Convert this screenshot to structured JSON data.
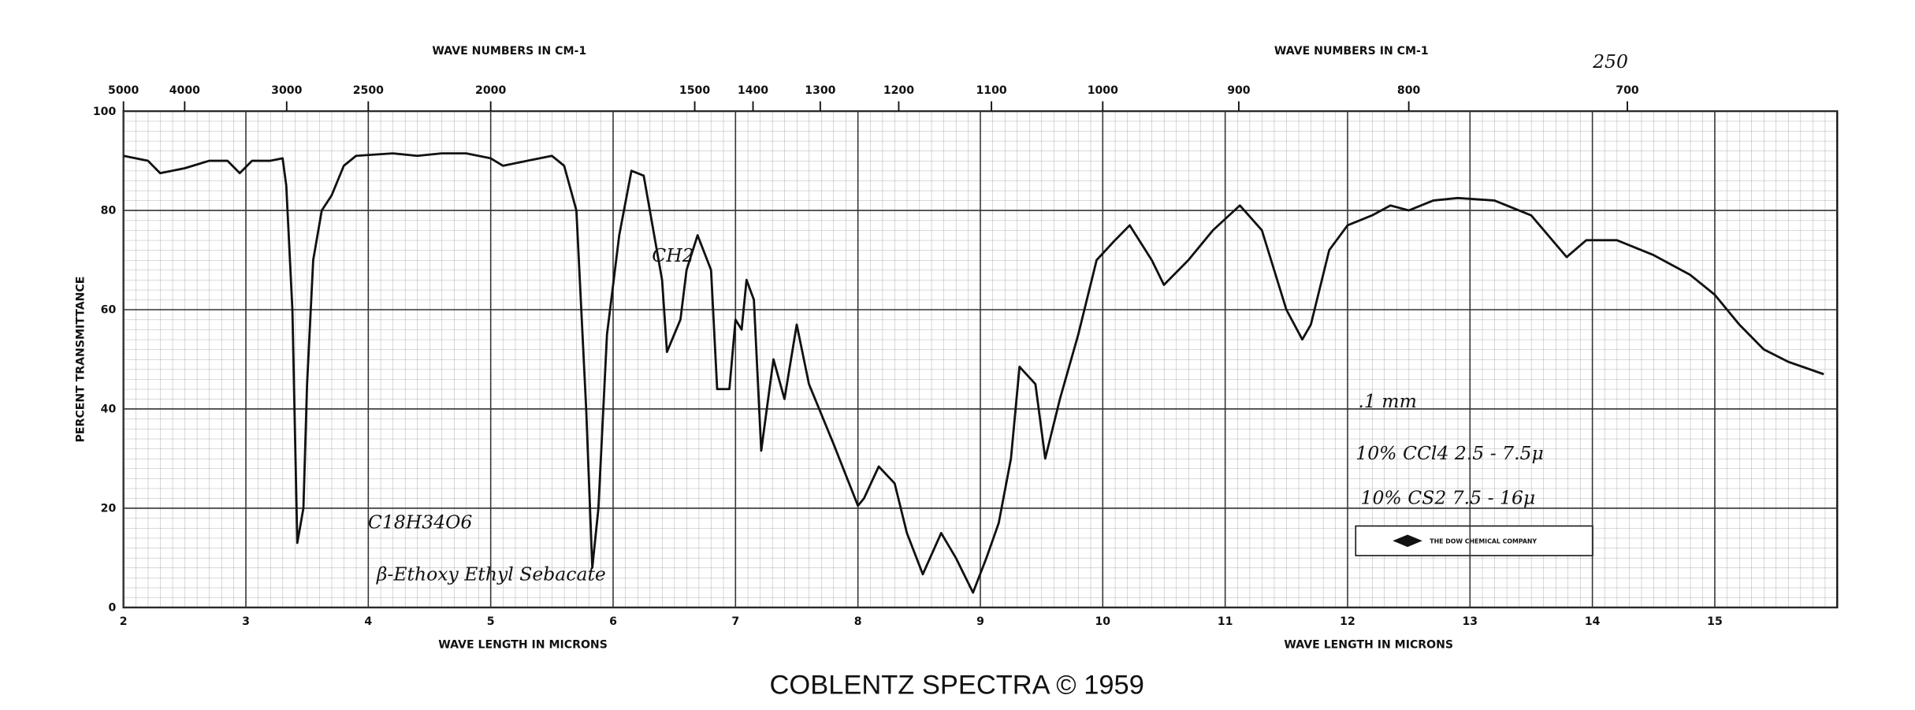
{
  "chart_data": {
    "type": "line",
    "header_number": "250",
    "x2_label": "WAVE NUMBERS IN CM-1",
    "xlabel": "WAVE LENGTH IN MICRONS",
    "ylabel": "PERCENT TRANSMITTANCE",
    "footer": "COBLENTZ SPECTRA © 1959",
    "company": "THE DOW CHEMICAL COMPANY",
    "annotations": [
      ".1 mm",
      "10% CCl4   2.5 - 7.5μ",
      "10% CS2   7.5 - 16μ",
      "β-Ethoxy Ethyl Sebacate",
      "C18H34O6",
      "CH2"
    ],
    "color": "#111111",
    "xlim": [
      2,
      16
    ],
    "xticks": [
      2,
      3,
      4,
      5,
      6,
      7,
      8,
      9,
      10,
      11,
      12,
      13,
      14,
      15
    ],
    "x2lim": [
      5000,
      625
    ],
    "x2ticks": [
      5000,
      4000,
      3000,
      2500,
      2000,
      1500,
      1400,
      1300,
      1200,
      1100,
      1000,
      900,
      800,
      700
    ],
    "ylim": [
      0,
      100
    ],
    "yticks": [
      0,
      20,
      40,
      60,
      80,
      100
    ],
    "grid": true,
    "x": [
      2.0,
      2.2,
      2.3,
      2.5,
      2.7,
      2.85,
      2.95,
      3.05,
      3.2,
      3.3,
      3.33,
      3.38,
      3.42,
      3.47,
      3.5,
      3.55,
      3.62,
      3.7,
      3.8,
      3.9,
      4.2,
      4.4,
      4.6,
      4.8,
      5.0,
      5.1,
      5.3,
      5.5,
      5.6,
      5.7,
      5.78,
      5.83,
      5.88,
      5.95,
      6.05,
      6.15,
      6.25,
      6.3,
      6.4,
      6.44,
      6.55,
      6.6,
      6.69,
      6.8,
      6.85,
      6.95,
      7.0,
      7.05,
      7.09,
      7.15,
      7.21,
      7.31,
      7.4,
      7.5,
      7.6,
      7.8,
      8.0,
      8.05,
      8.17,
      8.3,
      8.4,
      8.53,
      8.68,
      8.8,
      8.94,
      9.05,
      9.15,
      9.25,
      9.32,
      9.45,
      9.53,
      9.65,
      9.8,
      9.95,
      10.1,
      10.22,
      10.4,
      10.5,
      10.7,
      10.9,
      11.12,
      11.3,
      11.5,
      11.63,
      11.7,
      11.85,
      12.0,
      12.2,
      12.35,
      12.5,
      12.7,
      12.9,
      13.2,
      13.5,
      13.79,
      13.95,
      14.2,
      14.5,
      14.8,
      15.0,
      15.2,
      15.4,
      15.6,
      15.89
    ],
    "values": [
      91,
      90,
      87.5,
      88.5,
      90,
      90,
      87.5,
      90,
      90,
      90.5,
      85,
      60,
      13,
      20,
      45,
      70,
      80,
      83,
      89,
      91,
      91.5,
      91,
      91.5,
      91.5,
      90.5,
      89,
      90,
      91,
      89,
      80,
      40,
      8,
      20,
      55,
      75,
      88,
      87,
      80,
      66,
      51.5,
      58,
      68,
      75,
      68,
      44,
      44,
      58,
      56,
      66,
      62,
      31.6,
      50,
      42,
      57,
      45,
      33,
      20.5,
      22,
      28.4,
      25,
      15,
      6.7,
      15,
      10,
      3,
      10,
      17,
      30,
      48.5,
      45,
      30,
      42,
      55,
      70,
      74,
      77,
      70,
      65,
      70,
      76,
      81,
      76,
      60,
      54,
      57,
      72,
      77,
      79,
      81,
      80,
      82,
      82.5,
      82,
      79,
      70.6,
      74,
      74,
      71,
      67,
      63,
      57,
      52,
      49.5,
      47
    ]
  }
}
